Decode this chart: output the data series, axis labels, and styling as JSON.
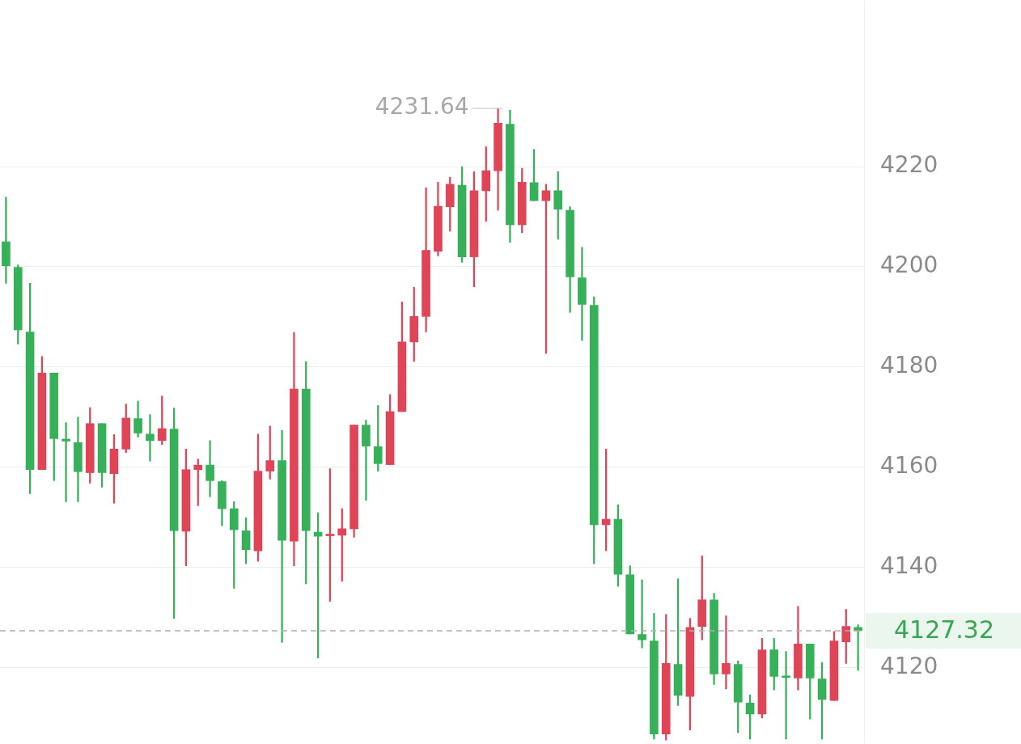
{
  "chart_data": {
    "type": "candlestick",
    "categories": [
      null,
      null,
      null,
      null,
      null,
      null,
      null,
      null,
      null,
      null,
      null,
      null,
      null,
      null,
      null,
      null,
      null,
      null,
      null,
      null,
      null,
      null,
      null,
      null,
      null,
      null,
      null,
      null,
      null,
      null,
      null,
      null,
      null,
      null,
      null,
      null,
      null,
      null,
      null,
      null,
      null,
      null,
      null,
      null,
      null,
      null,
      null,
      null,
      null,
      null,
      null,
      null,
      null,
      null,
      null,
      null,
      null,
      null,
      null,
      null,
      null,
      null,
      null,
      null,
      null,
      null,
      null,
      null,
      null,
      null,
      null,
      null
    ],
    "ohlc": [
      [
        4205.0,
        4213.9,
        4196.7,
        4200.2
      ],
      [
        4199.9,
        4200.4,
        4184.6,
        4187.4
      ],
      [
        4187.0,
        4196.7,
        4154.7,
        4159.5
      ],
      [
        4159.5,
        4182.1,
        4159.5,
        4178.8
      ],
      [
        4178.8,
        4178.8,
        4157.3,
        4165.7
      ],
      [
        4165.6,
        4168.9,
        4153.1,
        4165.2
      ],
      [
        4164.9,
        4170.0,
        4153.1,
        4159.1
      ],
      [
        4158.9,
        4171.9,
        4156.8,
        4168.7
      ],
      [
        4168.7,
        4168.7,
        4156.0,
        4158.9
      ],
      [
        4158.7,
        4166.5,
        4152.8,
        4163.6
      ],
      [
        4163.6,
        4172.6,
        4162.9,
        4169.8
      ],
      [
        4169.7,
        4173.2,
        4166.0,
        4166.8
      ],
      [
        4166.6,
        4170.5,
        4161.2,
        4165.3
      ],
      [
        4165.3,
        4174.2,
        4164.5,
        4167.7
      ],
      [
        4167.6,
        4171.8,
        4129.8,
        4147.3
      ],
      [
        4147.2,
        4163.6,
        4140.3,
        4159.5
      ],
      [
        4159.5,
        4161.6,
        4152.3,
        4160.4
      ],
      [
        4160.4,
        4165.3,
        4154.1,
        4157.3
      ],
      [
        4157.1,
        4157.3,
        4148.3,
        4151.7
      ],
      [
        4151.7,
        4153.1,
        4135.8,
        4147.5
      ],
      [
        4147.3,
        4149.9,
        4140.7,
        4143.5
      ],
      [
        4143.3,
        4166.6,
        4141.2,
        4159.2
      ],
      [
        4159.2,
        4168.2,
        4157.6,
        4161.3
      ],
      [
        4161.3,
        4167.3,
        4125.0,
        4145.4
      ],
      [
        4145.2,
        4186.9,
        4140.3,
        4175.6
      ],
      [
        4175.6,
        4181.1,
        4136.7,
        4147.3
      ],
      [
        4147.0,
        4150.9,
        4121.9,
        4146.2
      ],
      [
        4146.3,
        4159.7,
        4133.2,
        4146.4
      ],
      [
        4146.4,
        4151.7,
        4137.2,
        4147.7
      ],
      [
        4147.7,
        4168.4,
        4146.0,
        4168.4
      ],
      [
        4168.4,
        4169.4,
        4153.4,
        4164.2
      ],
      [
        4164.1,
        4172.3,
        4159.2,
        4160.7
      ],
      [
        4160.5,
        4174.5,
        4160.5,
        4171.1
      ],
      [
        4171.1,
        4193.0,
        4171.1,
        4185.0
      ],
      [
        4185.0,
        4195.9,
        4181.1,
        4190.1
      ],
      [
        4190.1,
        4215.8,
        4187.0,
        4203.3
      ],
      [
        4203.1,
        4216.9,
        4202.2,
        4212.1
      ],
      [
        4212.0,
        4217.9,
        4207.1,
        4216.5
      ],
      [
        4216.3,
        4220.0,
        4200.9,
        4202.0
      ],
      [
        4202.0,
        4219.0,
        4196.0,
        4215.2
      ],
      [
        4215.2,
        4224.0,
        4209.1,
        4219.2
      ],
      [
        4219.2,
        4231.64,
        4211.3,
        4228.7
      ],
      [
        4228.5,
        4231.3,
        4204.9,
        4208.4
      ],
      [
        4208.4,
        4219.7,
        4206.8,
        4216.9
      ],
      [
        4216.8,
        4223.5,
        4213.2,
        4213.2
      ],
      [
        4213.2,
        4216.5,
        4182.7,
        4215.2
      ],
      [
        4215.2,
        4219.0,
        4205.5,
        4211.5
      ],
      [
        4211.3,
        4212.0,
        4190.9,
        4198.0
      ],
      [
        4197.8,
        4203.9,
        4185.3,
        4192.5
      ],
      [
        4192.3,
        4194.0,
        4140.7,
        4148.5
      ],
      [
        4148.5,
        4163.6,
        4143.3,
        4149.6
      ],
      [
        4149.6,
        4152.5,
        4136.2,
        4138.6
      ],
      [
        4138.5,
        4140.3,
        4126.7,
        4126.7
      ],
      [
        4126.6,
        4137.5,
        4123.9,
        4125.5
      ],
      [
        4125.3,
        4130.8,
        4105.7,
        4106.7
      ],
      [
        4106.7,
        4130.6,
        4105.5,
        4120.8
      ],
      [
        4120.6,
        4137.7,
        4112.4,
        4114.4
      ],
      [
        4114.2,
        4129.8,
        4107.5,
        4128.0
      ],
      [
        4128.2,
        4142.3,
        4125.5,
        4133.5
      ],
      [
        4133.5,
        4134.8,
        4116.6,
        4118.7
      ],
      [
        4118.7,
        4130.3,
        4115.7,
        4120.8
      ],
      [
        4120.6,
        4121.3,
        4107.0,
        4113.1
      ],
      [
        4112.9,
        4114.5,
        4105.7,
        4110.7
      ],
      [
        4110.7,
        4125.8,
        4109.9,
        4123.5
      ],
      [
        4123.5,
        4125.8,
        4115.5,
        4118.2
      ],
      [
        4118.1,
        4123.2,
        4105.7,
        4118.0
      ],
      [
        4117.9,
        4132.2,
        4115.5,
        4124.7
      ],
      [
        4124.7,
        4124.7,
        4109.7,
        4117.9
      ],
      [
        4117.7,
        4121.0,
        4105.7,
        4113.6
      ],
      [
        4113.4,
        4127.2,
        4113.4,
        4125.3
      ],
      [
        4125.1,
        4131.6,
        4120.8,
        4128.2
      ],
      [
        4128.0,
        4128.5,
        4119.4,
        4127.32
      ]
    ],
    "colors": [
      "#37b05a",
      "#37b05a",
      "#37b05a",
      "#e04457",
      "#37b05a",
      "#37b05a",
      "#37b05a",
      "#e04457",
      "#37b05a",
      "#e04457",
      "#e04457",
      "#37b05a",
      "#37b05a",
      "#e04457",
      "#37b05a",
      "#e04457",
      "#e04457",
      "#37b05a",
      "#37b05a",
      "#37b05a",
      "#37b05a",
      "#e04457",
      "#e04457",
      "#37b05a",
      "#e04457",
      "#37b05a",
      "#37b05a",
      "#e04457",
      "#e04457",
      "#e04457",
      "#37b05a",
      "#37b05a",
      "#e04457",
      "#e04457",
      "#e04457",
      "#e04457",
      "#e04457",
      "#e04457",
      "#37b05a",
      "#e04457",
      "#e04457",
      "#e04457",
      "#37b05a",
      "#e04457",
      "#37b05a",
      "#e04457",
      "#37b05a",
      "#37b05a",
      "#37b05a",
      "#37b05a",
      "#e04457",
      "#37b05a",
      "#37b05a",
      "#37b05a",
      "#37b05a",
      "#e04457",
      "#37b05a",
      "#e04457",
      "#e04457",
      "#37b05a",
      "#e04457",
      "#37b05a",
      "#37b05a",
      "#e04457",
      "#37b05a",
      "#37b05a",
      "#e04457",
      "#37b05a",
      "#37b05a",
      "#e04457",
      "#e04457",
      "#37b05a"
    ],
    "ylim": [
      4105,
      4253
    ],
    "yticks": [
      4120,
      4140,
      4160,
      4180,
      4200,
      4220
    ],
    "grid": "y",
    "tick_labels": "y",
    "ref_lines": [
      {
        "axis": "y",
        "value": 4127.32,
        "label": "4127.32",
        "color": "#b0b0b0",
        "line_style": "dashed"
      }
    ],
    "annotations": [
      "4231.64"
    ]
  }
}
